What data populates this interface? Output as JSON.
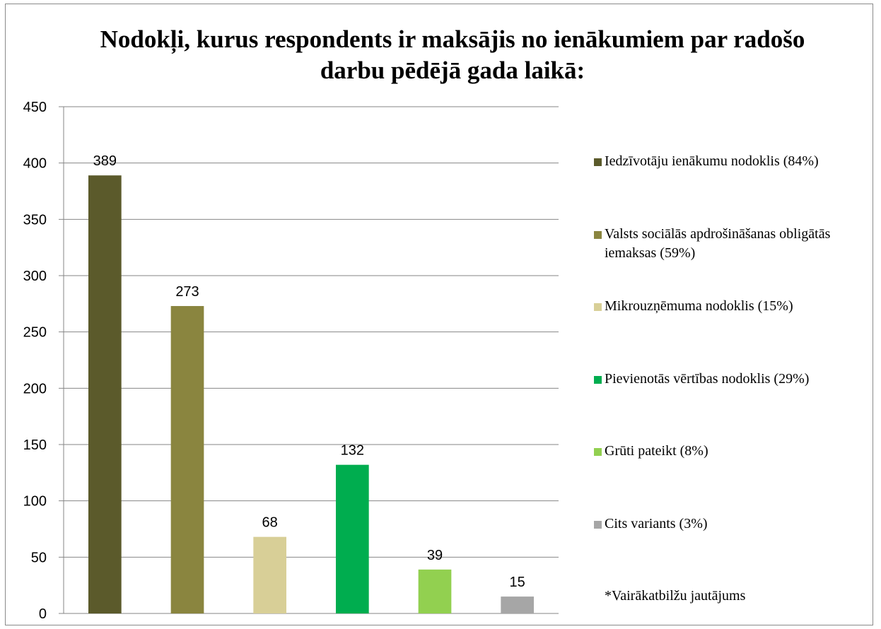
{
  "chart_data": {
    "type": "bar",
    "title": "Nodokļi, kurus respondents ir maksājis no ienākumiem par radošo darbu pēdējā gada laikā:",
    "categories": [
      null
    ],
    "series": [
      {
        "name": "Iedzīvotāju ienākumu nodoklis (84%)",
        "color": "#5b5a2b",
        "values": [
          389
        ]
      },
      {
        "name": "Valsts sociālās apdrošināšanas obligātās iemaksas (59%)",
        "color": "#8a853f",
        "values": [
          273
        ]
      },
      {
        "name": "Mikrouzņēmuma nodoklis (15%)",
        "color": "#d8cf97",
        "values": [
          68
        ]
      },
      {
        "name": "Pievienotās vērtības nodoklis (29%)",
        "color": "#00ad4f",
        "values": [
          132
        ]
      },
      {
        "name": "Grūti pateikt (8%)",
        "color": "#92d050",
        "values": [
          39
        ]
      },
      {
        "name": "Cits variants (3%)",
        "color": "#a6a6a6",
        "values": [
          15
        ]
      }
    ],
    "annotation": "*Vairākatbilžu jautājums",
    "ylim": [
      0,
      450
    ],
    "yticks": [
      0,
      50,
      100,
      150,
      200,
      250,
      300,
      350,
      400,
      450
    ],
    "grid": true,
    "legend": "right"
  }
}
